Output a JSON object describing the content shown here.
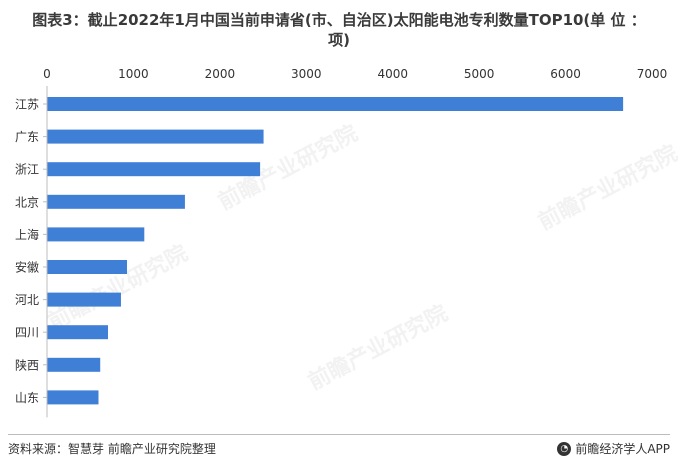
{
  "chart_data": {
    "type": "bar",
    "orientation": "horizontal",
    "title_line1": "图表3：截止2022年1月中国当前申请省(市、自治区)太阳能电池专利数量TOP10(单 位 ：",
    "title_line2": "项)",
    "categories": [
      "江苏",
      "广东",
      "浙江",
      "北京",
      "上海",
      "安徽",
      "河北",
      "四川",
      "陕西",
      "山东"
    ],
    "values": [
      6660,
      2500,
      2460,
      1590,
      1120,
      920,
      850,
      700,
      610,
      590
    ],
    "xlim": [
      0,
      7000
    ],
    "xticks": [
      "0",
      "1000",
      "2000",
      "3000",
      "4000",
      "5000",
      "6000",
      "7000"
    ],
    "xaxis_position": "top",
    "bar_color": "#3f7fd6",
    "grid": false,
    "legend": "none"
  },
  "watermark": "前瞻产业研究院",
  "footer": {
    "source": "资料来源：智慧芽 前瞻产业研究院整理",
    "brand": "前瞻经济学人APP",
    "brand_icon": "qianzhan-logo-icon"
  }
}
